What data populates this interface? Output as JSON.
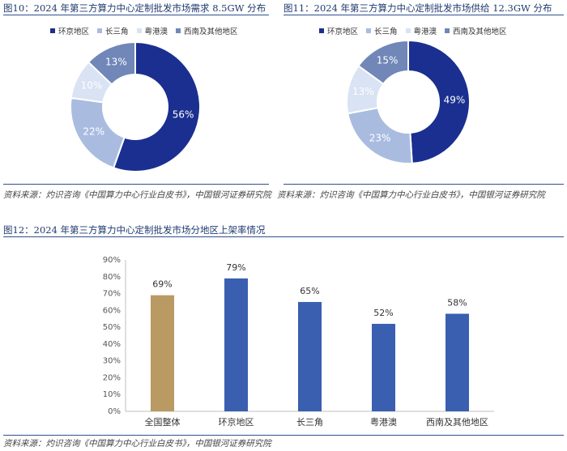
{
  "colors": {
    "huanjing": "#1a2f8f",
    "changsanjiao": "#a9bce0",
    "yuegangao": "#d9e3f3",
    "xinan": "#7087b8",
    "bar_overall": "#b99a63",
    "bar_regions": "#3a5fb0"
  },
  "legend": [
    "环京地区",
    "长三角",
    "粤港澳",
    "西南及其他地区"
  ],
  "source_text": "资料来源：灼识咨询《中国算力中心行业白皮书》，中国银河证券研究院",
  "chart_data": [
    {
      "type": "pie",
      "title": "图10：2024 年第三方算力中心定制批发市场需求 8.5GW 分布",
      "categories": [
        "环京地区",
        "长三角",
        "粤港澳",
        "西南及其他地区"
      ],
      "values": [
        56,
        22,
        10,
        13
      ],
      "labels": [
        "56%",
        "22%",
        "10%",
        "13%"
      ],
      "donut": true,
      "legend_position": "top"
    },
    {
      "type": "pie",
      "title": "图11：2024 年第三方算力中心定制批发市场供给 12.3GW 分布",
      "categories": [
        "环京地区",
        "长三角",
        "粤港澳",
        "西南及其他地区"
      ],
      "values": [
        49,
        23,
        13,
        15
      ],
      "labels": [
        "49%",
        "23%",
        "13%",
        "15%"
      ],
      "donut": true,
      "legend_position": "top"
    },
    {
      "type": "bar",
      "title": "图12：2024 年第三方算力中心定制批发市场分地区上架率情况",
      "categories": [
        "全国整体",
        "环京地区",
        "长三角",
        "粤港澳",
        "西南及其他地区"
      ],
      "values": [
        69,
        79,
        65,
        52,
        58
      ],
      "labels": [
        "69%",
        "79%",
        "65%",
        "52%",
        "58%"
      ],
      "yticks": [
        "0%",
        "10%",
        "20%",
        "30%",
        "40%",
        "50%",
        "60%",
        "70%",
        "80%",
        "90%"
      ],
      "ylim": [
        0,
        90
      ],
      "grid": false
    }
  ]
}
